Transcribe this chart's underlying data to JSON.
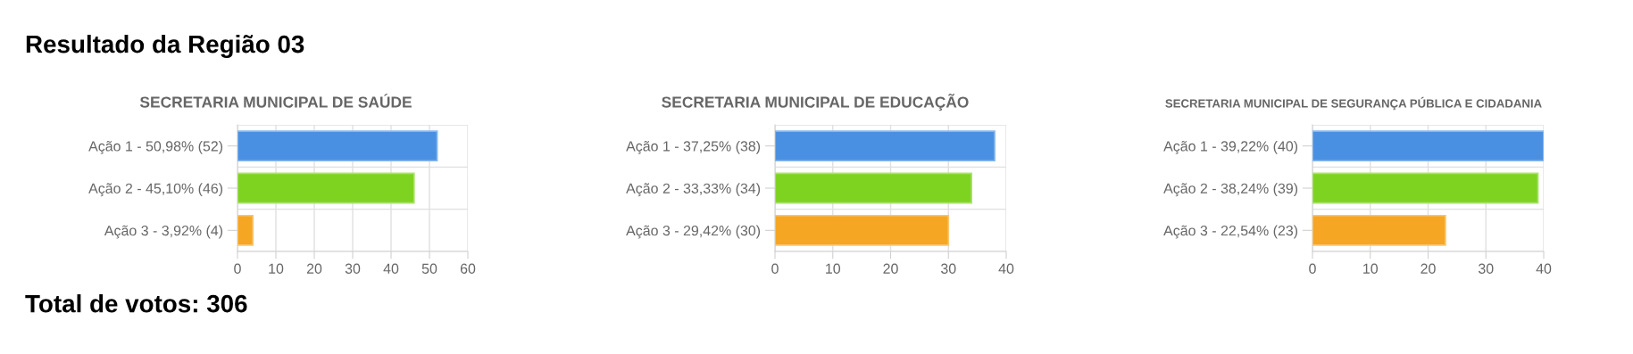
{
  "chart_data": [
    {
      "type": "other",
      "title": "Resultado da Região 03",
      "annotations": [
        "Total de votos: 306"
      ]
    },
    {
      "type": "bar",
      "orientation": "horizontal",
      "title": "SECRETARIA MUNICIPAL DE SAÚDE",
      "categories": [
        "Ação 1 - 50,98% (52)",
        "Ação 2 - 45,10% (46)",
        "Ação 3 - 3,92% (4)"
      ],
      "values": [
        52,
        46,
        4
      ],
      "colors": [
        "#4a90e2",
        "#7ed321",
        "#f5a623"
      ],
      "xlim": [
        0,
        60
      ],
      "xticks": [
        0,
        10,
        20,
        30,
        40,
        50,
        60
      ],
      "grid": true
    },
    {
      "type": "bar",
      "orientation": "horizontal",
      "title": "SECRETARIA MUNICIPAL DE EDUCAÇÃO",
      "categories": [
        "Ação 1 - 37,25% (38)",
        "Ação 2 - 33,33% (34)",
        "Ação 3 - 29,42% (30)"
      ],
      "values": [
        38,
        34,
        30
      ],
      "colors": [
        "#4a90e2",
        "#7ed321",
        "#f5a623"
      ],
      "xlim": [
        0,
        40
      ],
      "xticks": [
        0,
        10,
        20,
        30,
        40
      ],
      "grid": true
    },
    {
      "type": "bar",
      "orientation": "horizontal",
      "title": "SECRETARIA MUNICIPAL DE SEGURANÇA PÚBLICA E CIDADANIA",
      "categories": [
        "Ação 1 - 39,22% (40)",
        "Ação 2 - 38,24% (39)",
        "Ação 3 - 22,54% (23)"
      ],
      "values": [
        40,
        39,
        23
      ],
      "colors": [
        "#4a90e2",
        "#7ed321",
        "#f5a623"
      ],
      "xlim": [
        0,
        40
      ],
      "xticks": [
        0,
        10,
        20,
        30,
        40
      ],
      "grid": true
    }
  ]
}
